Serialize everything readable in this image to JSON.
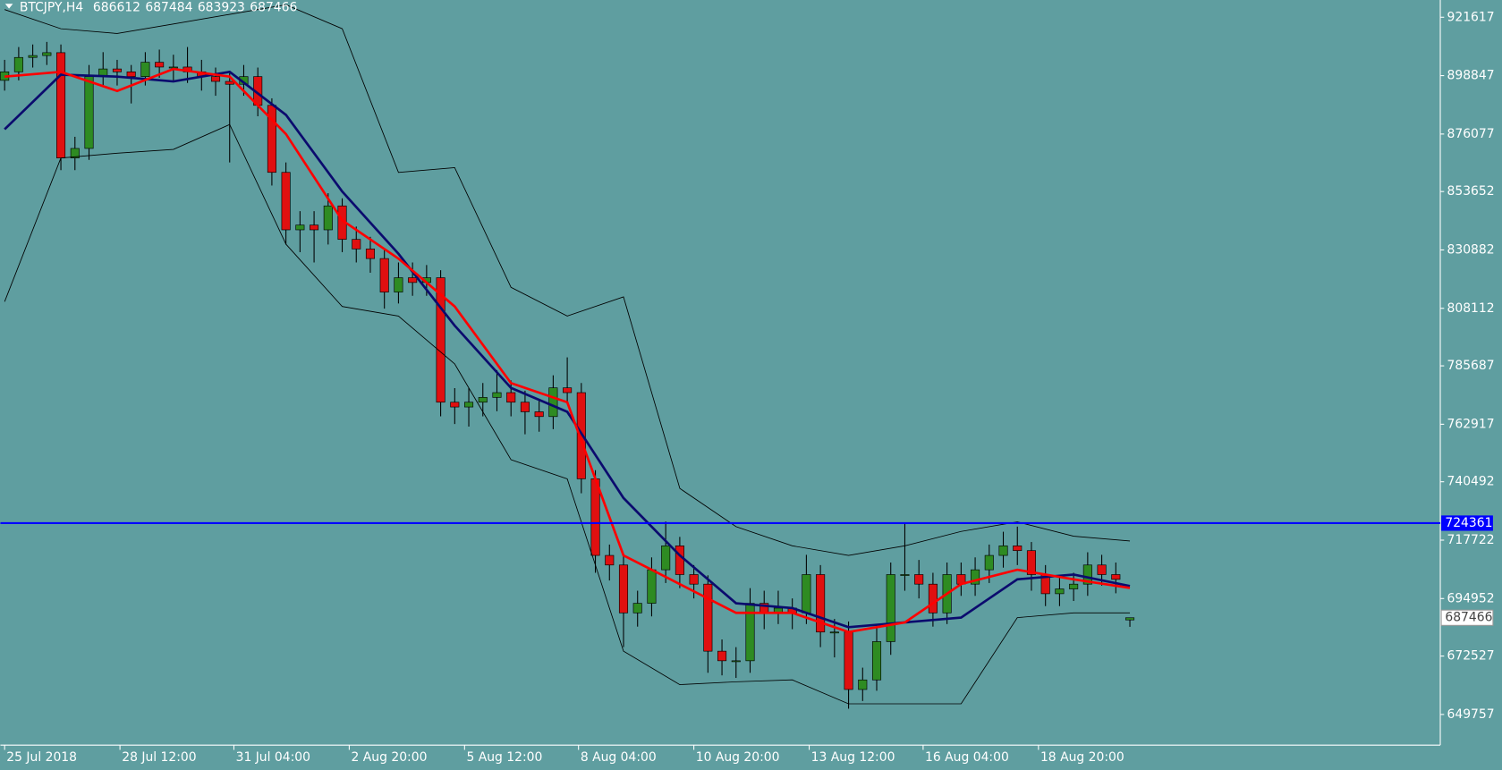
{
  "chart_data": {
    "type": "candlestick",
    "symbol": "BTCJPY,H4",
    "header_values": [
      686612,
      687484,
      683923,
      687466
    ],
    "open": [
      897000,
      900334,
      905935,
      906682,
      907802,
      866728,
      870462,
      898467,
      901454,
      900334,
      898467,
      904068,
      902201,
      902201,
      900334,
      898467,
      896600,
      895481,
      898467,
      887265,
      861127,
      838723,
      840590,
      838723,
      848058,
      834989,
      831255,
      827521,
      814452,
      820053,
      818186,
      820053,
      771511,
      769644,
      771511,
      773378,
      775245,
      771511,
      767777,
      765910,
      777112,
      775245,
      741639,
      711767,
      708033,
      689363,
      693097,
      706167,
      715503,
      704300,
      700566,
      674427,
      670693,
      670693,
      693097,
      689363,
      691230,
      689363,
      704300,
      681895,
      681895,
      659491,
      663225,
      678161,
      704300,
      704300,
      700566,
      689363,
      704300,
      700566,
      706167,
      711767,
      715503,
      713636,
      704300,
      696832,
      698699,
      700566,
      708033,
      704300,
      686612
    ],
    "high": [
      905000,
      910000,
      911000,
      912000,
      911000,
      875000,
      903000,
      908000,
      905000,
      903000,
      908000,
      909000,
      907000,
      910000,
      905000,
      902000,
      900000,
      903000,
      902000,
      890000,
      865000,
      846000,
      846000,
      853000,
      851000,
      840000,
      836000,
      831000,
      826000,
      826000,
      825000,
      823000,
      777000,
      777000,
      779000,
      784000,
      780000,
      776000,
      772000,
      782000,
      789000,
      779000,
      745000,
      716000,
      712000,
      698000,
      711000,
      725000,
      719000,
      708000,
      704000,
      679000,
      676000,
      699000,
      698000,
      698000,
      695000,
      712000,
      708000,
      687000,
      686000,
      668000,
      684000,
      709000,
      724000,
      710000,
      705000,
      709000,
      709000,
      711000,
      716000,
      721000,
      723000,
      717000,
      708000,
      703000,
      705000,
      713000,
      712000,
      709000,
      687484
    ],
    "low": [
      893000,
      897000,
      902000,
      903000,
      862000,
      862000,
      866000,
      895000,
      895000,
      888000,
      895000,
      898000,
      897000,
      896000,
      893000,
      891000,
      865000,
      891000,
      883000,
      856000,
      833000,
      830000,
      826000,
      833000,
      830000,
      826000,
      822000,
      808000,
      810000,
      813000,
      813000,
      766000,
      763000,
      762000,
      766000,
      768000,
      766000,
      759000,
      760000,
      761000,
      771000,
      736000,
      705000,
      702000,
      676000,
      684000,
      688000,
      701000,
      699000,
      695000,
      666000,
      665000,
      664000,
      666000,
      683000,
      685000,
      683000,
      685000,
      676000,
      672000,
      652000,
      655000,
      659000,
      673000,
      698000,
      695000,
      684000,
      685000,
      696000,
      696000,
      701000,
      707000,
      708000,
      698000,
      692000,
      692000,
      694000,
      696000,
      700000,
      697000,
      683923
    ],
    "close": [
      900334,
      905935,
      906682,
      907802,
      866728,
      870462,
      898467,
      901454,
      900334,
      898467,
      904068,
      902201,
      902201,
      900334,
      898467,
      896600,
      895481,
      898467,
      887265,
      861127,
      838723,
      840590,
      838723,
      848058,
      834989,
      831255,
      827521,
      814452,
      820053,
      818186,
      820053,
      771511,
      769644,
      771511,
      773378,
      775245,
      771511,
      767777,
      765910,
      777112,
      775245,
      741639,
      711767,
      708033,
      689363,
      693097,
      706167,
      715503,
      704300,
      700566,
      674427,
      670693,
      670693,
      693097,
      689363,
      691230,
      689363,
      704300,
      681895,
      681895,
      659491,
      663225,
      678161,
      704300,
      704300,
      700566,
      689363,
      704300,
      700566,
      706167,
      711767,
      715503,
      713636,
      704300,
      696832,
      698699,
      700566,
      708033,
      704300,
      702433,
      687466
    ],
    "up_color": "#2e8b22",
    "down_color": "#e01010",
    "line_x": [
      0,
      4,
      8,
      12,
      16,
      20,
      24,
      28,
      32,
      36,
      40,
      44,
      48,
      52,
      56,
      60,
      64,
      68,
      72,
      76,
      80
    ],
    "lines": [
      {
        "color": "#000000",
        "width": 0.8,
        "values": [
          924605,
          917137,
          915270,
          919004,
          922738,
          926472,
          917137,
          861127,
          862994,
          816319,
          805117,
          812585,
          737905,
          722969,
          715503,
          711767,
          715503,
          721102,
          724836,
          719235,
          717368
        ]
      },
      {
        "color": "#000000",
        "width": 0.8,
        "values": [
          810718,
          866728,
          868595,
          870089,
          879797,
          833122,
          808851,
          805117,
          786447,
          749107,
          741639,
          674427,
          661358,
          662478,
          663225,
          653890,
          653890,
          653890,
          687496,
          689363,
          689363
        ]
      },
      {
        "color": "#0b0b6e",
        "width": 2.5,
        "values": [
          877930,
          899213,
          898467,
          896600,
          900334,
          883531,
          853659,
          829388,
          801383,
          777112,
          767777,
          734171,
          711767,
          693097,
          691230,
          683762,
          685629,
          687496,
          702433,
          704300,
          699819
        ]
      },
      {
        "color": "#ff0000",
        "width": 2.5,
        "values": [
          898467,
          900334,
          892866,
          901454,
          898467,
          876063,
          842457,
          827521,
          808851,
          778979,
          771511,
          711767,
          700566,
          689363,
          689363,
          681895,
          685629,
          700566,
          706167,
          702433,
          699071
        ]
      }
    ],
    "hline": {
      "value": 724361,
      "color": "#0000ff"
    },
    "last_price": 687466,
    "xlim": [
      -0.3,
      102
    ],
    "xticks": [
      {
        "value": 0,
        "label": "25 Jul 2018"
      },
      {
        "value": 8.2,
        "label": "28 Jul 12:00"
      },
      {
        "value": 16.3,
        "label": "31 Jul 04:00"
      },
      {
        "value": 24.5,
        "label": "2 Aug 20:00"
      },
      {
        "value": 32.7,
        "label": "5 Aug 12:00"
      },
      {
        "value": 40.8,
        "label": "8 Aug 04:00"
      },
      {
        "value": 49,
        "label": "10 Aug 20:00"
      },
      {
        "value": 57.2,
        "label": "13 Aug 12:00"
      },
      {
        "value": 65.3,
        "label": "16 Aug 04:00"
      },
      {
        "value": 73.5,
        "label": "18 Aug 20:00"
      }
    ],
    "ylim": [
      637807,
      928339
    ],
    "yticks": [
      921617,
      898847,
      876077,
      853652,
      830882,
      808112,
      785687,
      762917,
      740492,
      717722,
      694952,
      672527,
      649757
    ],
    "grid": false
  }
}
